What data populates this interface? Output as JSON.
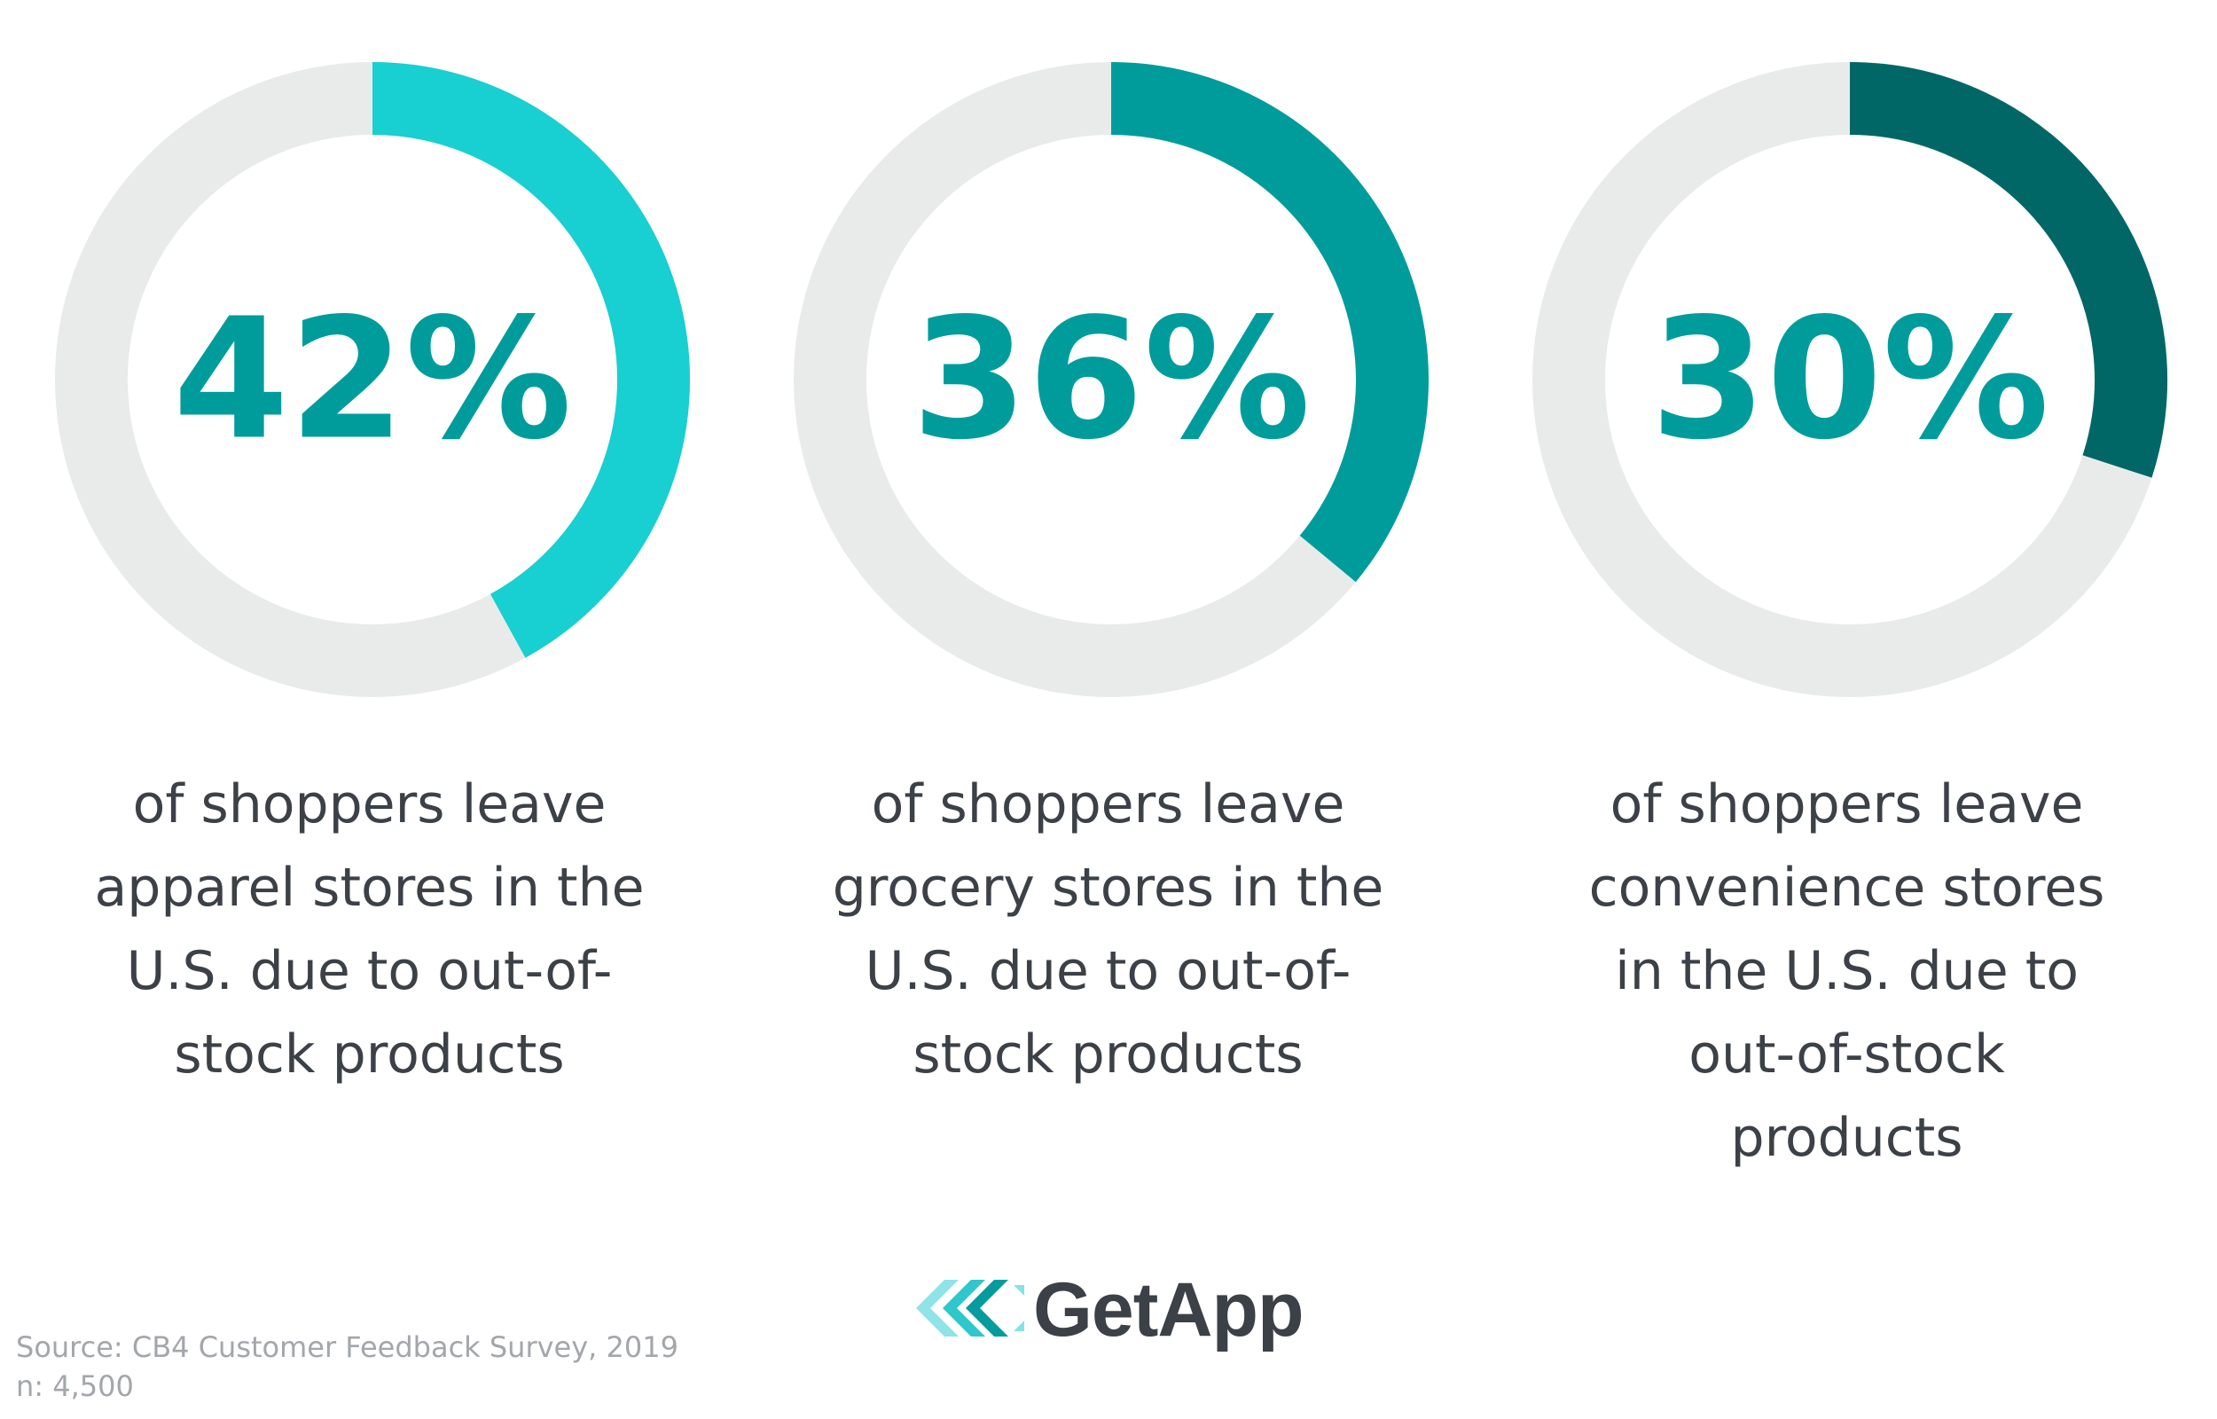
{
  "chart_data": {
    "type": "pie",
    "charts": [
      {
        "value": 42,
        "label": "42%",
        "caption_lines": [
          "of shoppers leave",
          "apparel stores in the",
          "U.S. due to out-of-",
          "stock products"
        ],
        "color": "#18CFD1"
      },
      {
        "value": 36,
        "label": "36%",
        "caption_lines": [
          "of shoppers leave",
          "grocery stores in the",
          "U.S. due to out-of-",
          "stock products"
        ],
        "color": "#009C9C"
      },
      {
        "value": 30,
        "label": "30%",
        "caption_lines": [
          "of shoppers leave",
          "convenience stores",
          "in the U.S. due to",
          "out-of-stock",
          "products"
        ],
        "color": "#006766"
      }
    ],
    "track_color": "#E9EBEB",
    "label_color": "#009C9C"
  },
  "logo": {
    "text": "GetApp",
    "icon": "getapp-chevrons-icon"
  },
  "source": {
    "line1": "Source: CB4 Customer Feedback Survey, 2019",
    "line2": "n: 4,500"
  }
}
